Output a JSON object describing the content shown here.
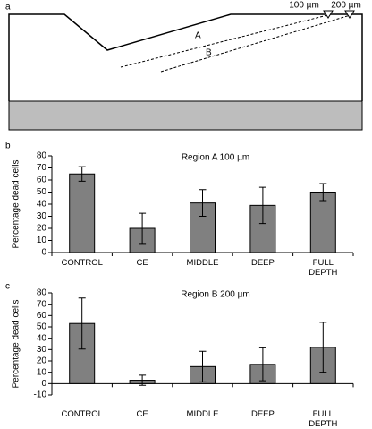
{
  "panel_labels": [
    "a",
    "b",
    "c"
  ],
  "diagram": {
    "depth_labels": [
      "100 µm",
      "200 µm"
    ],
    "line_labels": [
      "A",
      "B"
    ]
  },
  "chart_data": [
    {
      "type": "bar",
      "title": "Region A 100 µm",
      "ylabel": "Percentage dead cells",
      "categories": [
        "CONTROL",
        "CE",
        "MIDDLE",
        "DEEP",
        "FULL DEPTH"
      ],
      "values": [
        65,
        20,
        41,
        39,
        50
      ],
      "errors": [
        6,
        12.5,
        11,
        15,
        7
      ],
      "color": "#808080",
      "ylim": [
        0,
        80
      ],
      "yticks": [
        0,
        10,
        20,
        30,
        40,
        50,
        60,
        70,
        80
      ]
    },
    {
      "type": "bar",
      "title": "Region B 200 µm",
      "ylabel": "Percentage dead cells",
      "categories": [
        "CONTROL",
        "CE",
        "MIDDLE",
        "DEEP",
        "FULL DEPTH"
      ],
      "values": [
        53,
        3,
        15,
        17,
        32
      ],
      "errors": [
        22.5,
        4.5,
        13.5,
        14.5,
        22
      ],
      "color": "#808080",
      "ylim": [
        -10,
        80
      ],
      "yticks": [
        -10,
        0,
        10,
        20,
        30,
        40,
        50,
        60,
        70,
        80
      ]
    }
  ]
}
